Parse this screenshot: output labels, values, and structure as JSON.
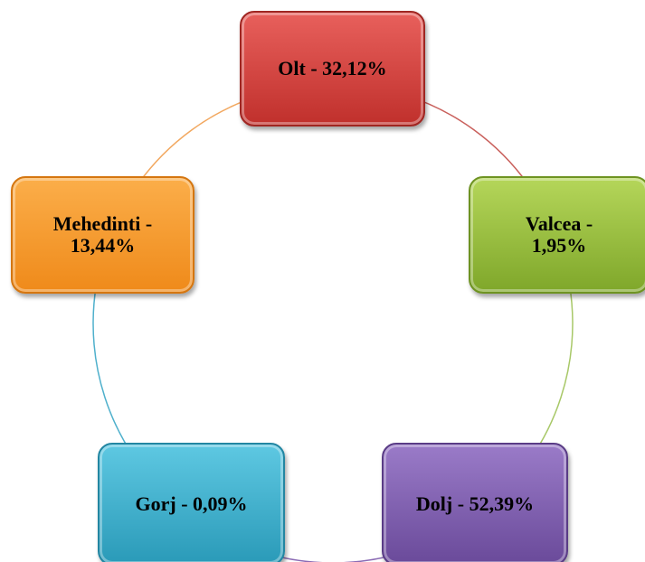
{
  "nodes": [
    {
      "label": "Olt - 32,12%"
    },
    {
      "label": "Valcea - 1,95%"
    },
    {
      "label": "Dolj - 52,39%"
    },
    {
      "label": "Gorj - 0,09%"
    },
    {
      "label": "Mehedinti - 13,44%"
    }
  ]
}
